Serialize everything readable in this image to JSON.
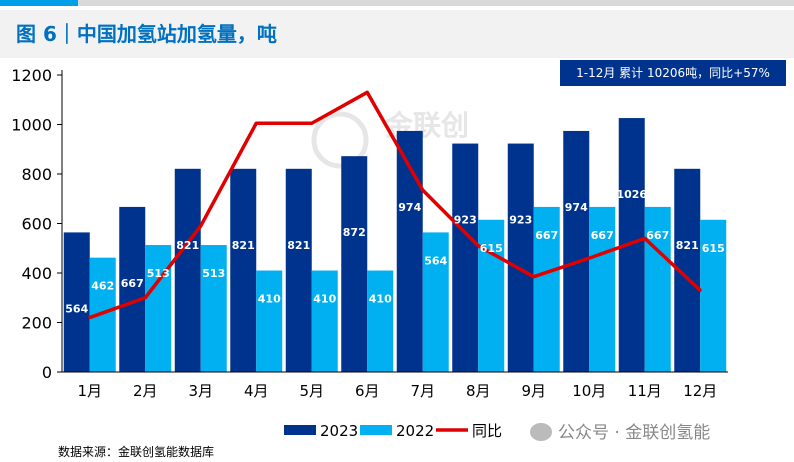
{
  "header": {
    "title": "图 6｜中国加氢站加氢量，吨"
  },
  "annotation": "1-12月 累计 10206吨，同比+57%",
  "source": "数据来源：金联创氢能数据库",
  "watermark_bottom": "公众号 · 金联创氢能",
  "watermark_center": "金联创",
  "colors": {
    "s2023": "#00338d",
    "s2022": "#00b0f0",
    "yoy": "#e00000",
    "title": "#0070c0"
  },
  "chart_data": {
    "type": "bar",
    "categories": [
      "1月",
      "2月",
      "3月",
      "4月",
      "5月",
      "6月",
      "7月",
      "8月",
      "9月",
      "10月",
      "11月",
      "12月"
    ],
    "series": [
      {
        "name": "2023",
        "kind": "bar",
        "values": [
          564,
          667,
          821,
          821,
          821,
          872,
          974,
          923,
          923,
          974,
          1026,
          821
        ]
      },
      {
        "name": "2022",
        "kind": "bar",
        "values": [
          462,
          513,
          513,
          410,
          410,
          410,
          564,
          615,
          667,
          667,
          667,
          615
        ]
      },
      {
        "name": "同比",
        "kind": "line",
        "values": [
          220,
          300,
          590,
          1005,
          1005,
          1130,
          735,
          510,
          385,
          460,
          540,
          330
        ]
      }
    ],
    "yticks": [
      "0",
      "200",
      "400",
      "600",
      "800",
      "1000",
      "1200"
    ],
    "ylim": [
      0,
      1200
    ],
    "legend": [
      "2023",
      "2022",
      "同比"
    ],
    "legend_position": "bottom"
  }
}
